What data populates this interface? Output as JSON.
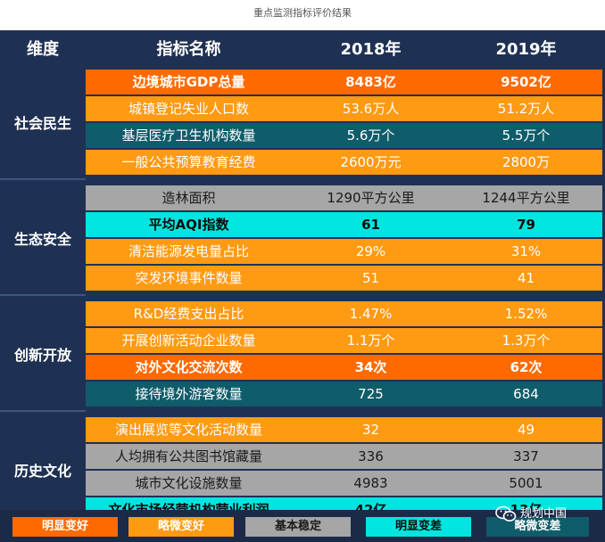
{
  "page_title": "重点监测指标评价结果",
  "header": {
    "col0": "维度",
    "col1": "指标名称",
    "col2": "2018年",
    "col3": "2019年"
  },
  "colors": {
    "明显变好": "#ff6a00",
    "略微变好": "#ff9a13",
    "基本稳定": "#a6a6a6",
    "明显变差": "#00e5e0",
    "略微变差": "#0f5c6a",
    "panel": "#1f3153"
  },
  "categories": [
    {
      "name": "社会民生",
      "start": 0,
      "count": 4
    },
    {
      "name": "生态安全",
      "start": 4,
      "count": 4
    },
    {
      "name": "创新开放",
      "start": 8,
      "count": 4
    },
    {
      "name": "历史文化",
      "start": 12,
      "count": 4
    }
  ],
  "rows": [
    {
      "name": "边境城市GDP总量",
      "y2018": "8483亿",
      "y2019": "9502亿",
      "status": "明显变好",
      "bold": true
    },
    {
      "name": "城镇登记失业人口数",
      "y2018": "53.6万人",
      "y2019": "51.2万人",
      "status": "略微变好",
      "bold": false
    },
    {
      "name": "基层医疗卫生机构数量",
      "y2018": "5.6万个",
      "y2019": "5.5万个",
      "status": "略微变差",
      "bold": false
    },
    {
      "name": "一般公共预算教育经费",
      "y2018": "2600万元",
      "y2019": "2800万",
      "status": "略微变好",
      "bold": false
    },
    {
      "name": "造林面积",
      "y2018": "1290平方公里",
      "y2019": "1244平方公里",
      "status": "基本稳定",
      "bold": false
    },
    {
      "name": "平均AQI指数",
      "y2018": "61",
      "y2019": "79",
      "status": "明显变差",
      "bold": true
    },
    {
      "name": "清洁能源发电量占比",
      "y2018": "29%",
      "y2019": "31%",
      "status": "略微变好",
      "bold": false
    },
    {
      "name": "突发环境事件数量",
      "y2018": "51",
      "y2019": "41",
      "status": "略微变好",
      "bold": false
    },
    {
      "name": "R&D经费支出占比",
      "y2018": "1.47%",
      "y2019": "1.52%",
      "status": "略微变好",
      "bold": false
    },
    {
      "name": "开展创新活动企业数量",
      "y2018": "1.1万个",
      "y2019": "1.3万个",
      "status": "略微变好",
      "bold": false
    },
    {
      "name": "对外文化交流次数",
      "y2018": "34次",
      "y2019": "62次",
      "status": "明显变好",
      "bold": true
    },
    {
      "name": "接待境外游客数量",
      "y2018": "725",
      "y2019": "684",
      "status": "略微变差",
      "bold": false
    },
    {
      "name": "演出展览等文化活动数量",
      "y2018": "32",
      "y2019": "49",
      "status": "略微变好",
      "bold": false
    },
    {
      "name": "人均拥有公共图书馆藏量",
      "y2018": "336",
      "y2019": "337",
      "status": "基本稳定",
      "bold": false
    },
    {
      "name": "城市文化设施数量",
      "y2018": "4983",
      "y2019": "5001",
      "status": "基本稳定",
      "bold": false
    },
    {
      "name": "文化市场经营机构营业利润",
      "y2018": "42亿",
      "y2019": "13亿",
      "status": "明显变差",
      "bold": true
    }
  ],
  "legend": [
    {
      "label": "明显变好",
      "status": "明显变好"
    },
    {
      "label": "略微变好",
      "status": "略微变好"
    },
    {
      "label": "基本稳定",
      "status": "基本稳定"
    },
    {
      "label": "明显变差",
      "status": "明显变差"
    },
    {
      "label": "略微变差",
      "status": "略微变差"
    }
  ],
  "watermark": {
    "text": "规划中国",
    "icon": "wechat-icon"
  }
}
